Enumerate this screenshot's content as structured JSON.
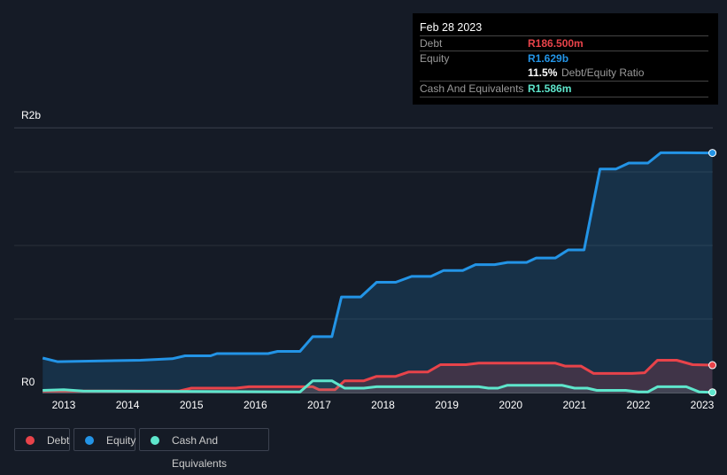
{
  "tooltip": {
    "date": "Feb 28 2023",
    "debt_label": "Debt",
    "debt_value": "R186.500m",
    "equity_label": "Equity",
    "equity_value": "R1.629b",
    "ratio_value": "11.5%",
    "ratio_label": "Debt/Equity Ratio",
    "cash_label": "Cash And Equivalents",
    "cash_value": "R1.586m"
  },
  "legend": [
    {
      "label": "Debt",
      "color": "#e8434a"
    },
    {
      "label": "Equity",
      "color": "#2394e6"
    },
    {
      "label": "Cash And Equivalents",
      "color": "#5ee6cc"
    }
  ],
  "chart_data": {
    "type": "line",
    "ylabel_top": "R2b",
    "ylabel_bottom": "R0",
    "ylim": [
      0,
      1.8
    ],
    "xlim": [
      2012.67,
      2023.16
    ],
    "y_unit": "R billions",
    "x_ticks": [
      "2013",
      "2014",
      "2015",
      "2016",
      "2017",
      "2018",
      "2019",
      "2020",
      "2021",
      "2022",
      "2023"
    ],
    "series": [
      {
        "name": "Equity",
        "color": "#2394e6",
        "points": [
          [
            2012.67,
            0.235
          ],
          [
            2012.9,
            0.21
          ],
          [
            2014.2,
            0.22
          ],
          [
            2014.7,
            0.23
          ],
          [
            2014.9,
            0.25
          ],
          [
            2015.3,
            0.25
          ],
          [
            2015.4,
            0.265
          ],
          [
            2016.2,
            0.265
          ],
          [
            2016.35,
            0.28
          ],
          [
            2016.7,
            0.28
          ],
          [
            2016.9,
            0.38
          ],
          [
            2017.2,
            0.38
          ],
          [
            2017.35,
            0.65
          ],
          [
            2017.65,
            0.65
          ],
          [
            2017.9,
            0.75
          ],
          [
            2018.2,
            0.75
          ],
          [
            2018.45,
            0.79
          ],
          [
            2018.75,
            0.79
          ],
          [
            2018.95,
            0.83
          ],
          [
            2019.25,
            0.83
          ],
          [
            2019.45,
            0.87
          ],
          [
            2019.75,
            0.87
          ],
          [
            2019.95,
            0.885
          ],
          [
            2020.25,
            0.885
          ],
          [
            2020.4,
            0.915
          ],
          [
            2020.7,
            0.915
          ],
          [
            2020.9,
            0.97
          ],
          [
            2021.15,
            0.97
          ],
          [
            2021.4,
            1.52
          ],
          [
            2021.65,
            1.52
          ],
          [
            2021.85,
            1.56
          ],
          [
            2022.15,
            1.56
          ],
          [
            2022.35,
            1.63
          ],
          [
            2022.7,
            1.63
          ],
          [
            2023.16,
            1.629
          ]
        ]
      },
      {
        "name": "Debt",
        "color": "#e8434a",
        "points": [
          [
            2012.67,
            0.01
          ],
          [
            2014.8,
            0.01
          ],
          [
            2015.0,
            0.03
          ],
          [
            2015.7,
            0.03
          ],
          [
            2015.9,
            0.04
          ],
          [
            2016.9,
            0.04
          ],
          [
            2017.0,
            0.02
          ],
          [
            2017.25,
            0.02
          ],
          [
            2017.4,
            0.08
          ],
          [
            2017.7,
            0.08
          ],
          [
            2017.9,
            0.11
          ],
          [
            2018.2,
            0.11
          ],
          [
            2018.4,
            0.14
          ],
          [
            2018.7,
            0.14
          ],
          [
            2018.9,
            0.19
          ],
          [
            2019.3,
            0.19
          ],
          [
            2019.5,
            0.2
          ],
          [
            2020.7,
            0.2
          ],
          [
            2020.85,
            0.18
          ],
          [
            2021.1,
            0.18
          ],
          [
            2021.3,
            0.13
          ],
          [
            2021.9,
            0.13
          ],
          [
            2022.1,
            0.135
          ],
          [
            2022.3,
            0.22
          ],
          [
            2022.6,
            0.22
          ],
          [
            2022.85,
            0.19
          ],
          [
            2023.16,
            0.1865
          ]
        ]
      },
      {
        "name": "Cash And Equivalents",
        "color": "#5ee6cc",
        "points": [
          [
            2012.67,
            0.015
          ],
          [
            2013.0,
            0.02
          ],
          [
            2013.3,
            0.01
          ],
          [
            2016.7,
            0.005
          ],
          [
            2016.9,
            0.08
          ],
          [
            2017.2,
            0.08
          ],
          [
            2017.4,
            0.03
          ],
          [
            2017.7,
            0.03
          ],
          [
            2017.9,
            0.04
          ],
          [
            2019.5,
            0.04
          ],
          [
            2019.65,
            0.03
          ],
          [
            2019.8,
            0.03
          ],
          [
            2019.95,
            0.05
          ],
          [
            2020.8,
            0.05
          ],
          [
            2021.0,
            0.03
          ],
          [
            2021.2,
            0.03
          ],
          [
            2021.35,
            0.015
          ],
          [
            2021.8,
            0.015
          ],
          [
            2022.0,
            0.005
          ],
          [
            2022.15,
            0.005
          ],
          [
            2022.3,
            0.04
          ],
          [
            2022.75,
            0.04
          ],
          [
            2022.95,
            0.005
          ],
          [
            2023.16,
            0.0016
          ]
        ]
      }
    ]
  }
}
